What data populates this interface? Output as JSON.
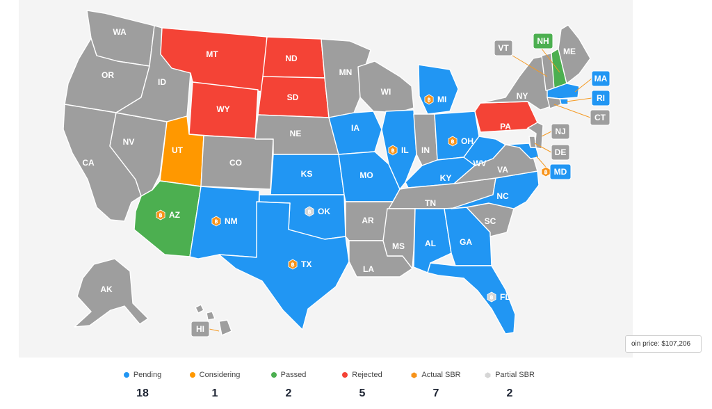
{
  "colors": {
    "pending": "#2196f3",
    "considering": "#ff9800",
    "passed": "#4caf50",
    "rejected": "#f44336",
    "none": "#9e9e9e",
    "sbr_actual": "#f7931a",
    "sbr_partial": "#d6d6d6"
  },
  "states": [
    {
      "code": "WA",
      "status": "none"
    },
    {
      "code": "OR",
      "status": "none"
    },
    {
      "code": "CA",
      "status": "none"
    },
    {
      "code": "NV",
      "status": "none"
    },
    {
      "code": "ID",
      "status": "none"
    },
    {
      "code": "MT",
      "status": "rejected"
    },
    {
      "code": "WY",
      "status": "rejected"
    },
    {
      "code": "UT",
      "status": "considering"
    },
    {
      "code": "AZ",
      "status": "passed",
      "sbr": "actual"
    },
    {
      "code": "CO",
      "status": "none"
    },
    {
      "code": "NM",
      "status": "pending",
      "sbr": "actual"
    },
    {
      "code": "ND",
      "status": "rejected"
    },
    {
      "code": "SD",
      "status": "rejected"
    },
    {
      "code": "NE",
      "status": "none"
    },
    {
      "code": "KS",
      "status": "pending"
    },
    {
      "code": "OK",
      "status": "pending",
      "sbr": "partial"
    },
    {
      "code": "TX",
      "status": "pending",
      "sbr": "actual"
    },
    {
      "code": "MN",
      "status": "none"
    },
    {
      "code": "IA",
      "status": "pending"
    },
    {
      "code": "MO",
      "status": "pending"
    },
    {
      "code": "AR",
      "status": "none"
    },
    {
      "code": "LA",
      "status": "none"
    },
    {
      "code": "WI",
      "status": "none"
    },
    {
      "code": "IL",
      "status": "pending",
      "sbr": "actual"
    },
    {
      "code": "MI",
      "status": "pending",
      "sbr": "actual"
    },
    {
      "code": "IN",
      "status": "none"
    },
    {
      "code": "OH",
      "status": "pending",
      "sbr": "actual"
    },
    {
      "code": "KY",
      "status": "pending"
    },
    {
      "code": "TN",
      "status": "none"
    },
    {
      "code": "MS",
      "status": "none"
    },
    {
      "code": "AL",
      "status": "pending"
    },
    {
      "code": "GA",
      "status": "pending"
    },
    {
      "code": "FL",
      "status": "pending",
      "sbr": "partial"
    },
    {
      "code": "SC",
      "status": "none"
    },
    {
      "code": "NC",
      "status": "pending"
    },
    {
      "code": "VA",
      "status": "none"
    },
    {
      "code": "WV",
      "status": "pending"
    },
    {
      "code": "PA",
      "status": "rejected"
    },
    {
      "code": "NY",
      "status": "none"
    },
    {
      "code": "VT",
      "status": "none"
    },
    {
      "code": "NH",
      "status": "passed"
    },
    {
      "code": "ME",
      "status": "none"
    },
    {
      "code": "MA",
      "status": "pending"
    },
    {
      "code": "RI",
      "status": "pending"
    },
    {
      "code": "CT",
      "status": "none"
    },
    {
      "code": "NJ",
      "status": "none"
    },
    {
      "code": "DE",
      "status": "none"
    },
    {
      "code": "MD",
      "status": "pending",
      "sbr": "actual"
    },
    {
      "code": "AK",
      "status": "none"
    },
    {
      "code": "HI",
      "status": "none"
    }
  ],
  "price_label": "oin price: $107,206",
  "legend": [
    {
      "key": "pending",
      "label": "Pending",
      "count": "18",
      "color": "#2196f3"
    },
    {
      "key": "considering",
      "label": "Considering",
      "count": "1",
      "color": "#ff9800"
    },
    {
      "key": "passed",
      "label": "Passed",
      "count": "2",
      "color": "#4caf50"
    },
    {
      "key": "rejected",
      "label": "Rejected",
      "count": "5",
      "color": "#f44336"
    },
    {
      "key": "actual_sbr",
      "label": "Actual SBR",
      "count": "7",
      "color": "#f7931a"
    },
    {
      "key": "partial_sbr",
      "label": "Partial SBR",
      "count": "2",
      "color": "#d6d6d6"
    }
  ]
}
